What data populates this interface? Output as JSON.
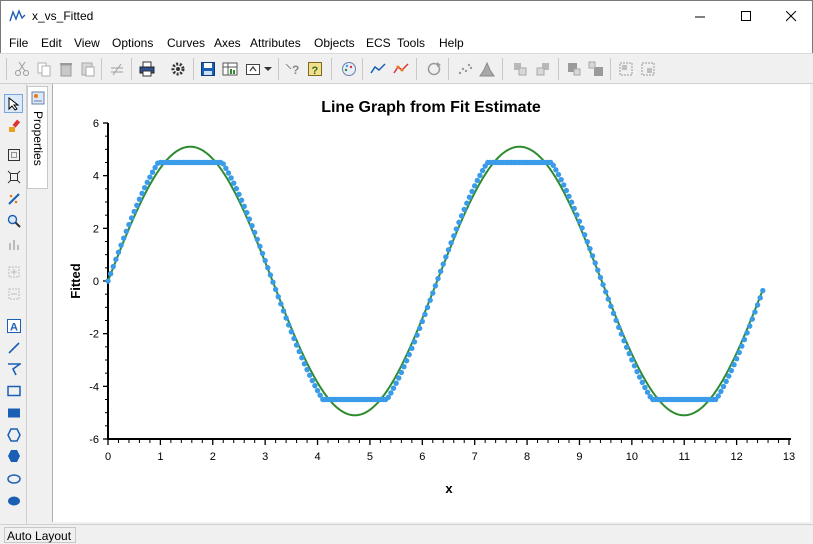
{
  "window": {
    "title": "x_vs_Fitted"
  },
  "menu": [
    "File",
    "Edit",
    "View",
    "Options",
    "Curves",
    "Axes",
    "Attributes",
    "Objects",
    "ECS",
    "Tools",
    "Help"
  ],
  "toolbar_icons": [
    "cut-icon",
    "copy-icon",
    "delete-icon",
    "paste-icon",
    "unlink-icon",
    "print-icon",
    "settings-icon",
    "save-icon",
    "data-sheet-icon",
    "export-icon",
    "dropdown-icon",
    "what-is-icon",
    "help-icon",
    "palette-icon",
    "line-plot-icon",
    "scatter-line-icon",
    "rotate-icon",
    "scatter-icon",
    "histogram-icon",
    "bring-forward-icon",
    "send-backward-icon",
    "bring-to-front-icon",
    "send-to-back-icon",
    "group-icon",
    "ungroup-icon"
  ],
  "left_tools": [
    "pointer-icon",
    "brush-icon",
    "zoom-fit-icon",
    "zoom-extent-icon",
    "edit-data-icon",
    "magnify-icon",
    "chart-icon",
    "layer-add-icon",
    "layer-remove-icon",
    "text-tool-icon",
    "line-tool-icon",
    "polyline-tool-icon",
    "rectangle-tool-icon",
    "filled-rectangle-tool-icon",
    "hexagon-tool-icon",
    "filled-hexagon-tool-icon",
    "ellipse-tool-icon",
    "filled-ellipse-tool-icon"
  ],
  "properties_tab": "Properties",
  "status": {
    "text": "Auto Layout"
  },
  "colors": {
    "fit_line": "#2e8b2e",
    "points": "#3a9be8",
    "accent": "#1a5fb4"
  },
  "chart_data": {
    "type": "scatter",
    "title": "Line Graph from Fit Estimate",
    "xlabel": "x",
    "ylabel": "Fitted",
    "xlim": [
      0,
      13
    ],
    "ylim": [
      -6,
      6
    ],
    "xticks": [
      "0",
      "1",
      "2",
      "3",
      "4",
      "5",
      "6",
      "7",
      "8",
      "9",
      "10",
      "11",
      "12",
      "13"
    ],
    "yticks": [
      "-6",
      "-4",
      "-2",
      "0",
      "2",
      "4",
      "6"
    ],
    "grid": false,
    "series": [
      {
        "type": "line",
        "function": "5.1*sin(x)",
        "x_range": [
          0,
          12.5
        ]
      },
      {
        "type": "scatter",
        "function": "clip(5.5*sin(x), -4.5, 4.5)",
        "x_range": [
          0,
          12.5
        ]
      }
    ]
  }
}
